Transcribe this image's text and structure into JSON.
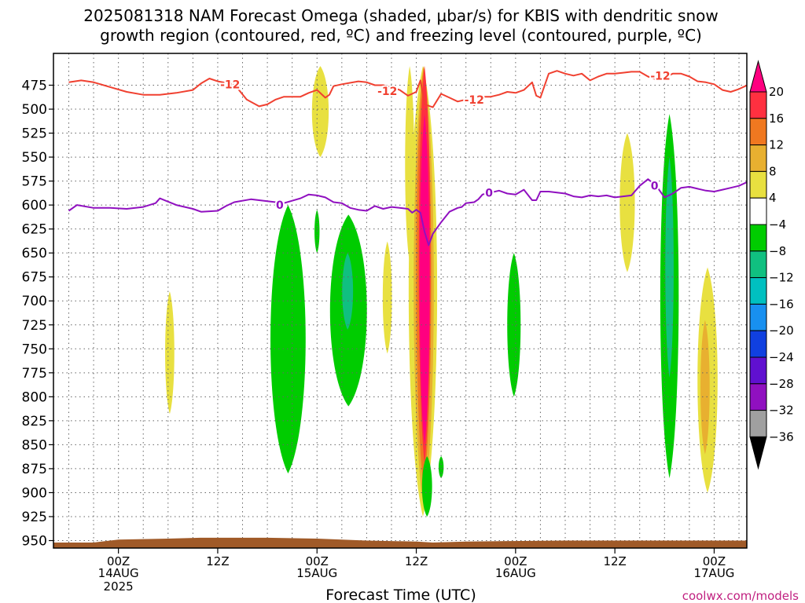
{
  "chart_data": {
    "type": "heatmap",
    "title_line1": "2025081318 NAM Forecast Omega (shaded, μbar/s) for KBIS with dendritic snow",
    "title_line2": "growth region (contoured, red, ºC) and freezing level (contoured, purple, ºC)",
    "xlabel": "Forecast Time (UTC)",
    "ylabel": "",
    "credit": "coolwx.com/models",
    "x_ticks": [
      {
        "hour": 6,
        "label": "00Z",
        "sub": "14AUG",
        "sub2": "2025"
      },
      {
        "hour": 18,
        "label": "12Z",
        "sub": "",
        "sub2": ""
      },
      {
        "hour": 30,
        "label": "00Z",
        "sub": "15AUG",
        "sub2": ""
      },
      {
        "hour": 42,
        "label": "12Z",
        "sub": "",
        "sub2": ""
      },
      {
        "hour": 54,
        "label": "00Z",
        "sub": "16AUG",
        "sub2": ""
      },
      {
        "hour": 66,
        "label": "12Z",
        "sub": "",
        "sub2": ""
      },
      {
        "hour": 78,
        "label": "00Z",
        "sub": "17AUG",
        "sub2": ""
      }
    ],
    "xlim": [
      0,
      84
    ],
    "y_ticks": [
      475,
      500,
      525,
      550,
      575,
      600,
      625,
      650,
      675,
      700,
      725,
      750,
      775,
      800,
      825,
      850,
      875,
      900,
      925,
      950
    ],
    "ylim_pressure_mb": [
      455,
      957
    ],
    "grid": true,
    "colorbar": {
      "labels": [
        "20",
        "16",
        "12",
        "8",
        "4",
        "−4",
        "−8",
        "−12",
        "−16",
        "−20",
        "−24",
        "−28",
        "−32",
        "−36"
      ],
      "colors": [
        "#ff0080",
        "#ff3040",
        "#f07820",
        "#e8b030",
        "#e8e040",
        "#ffffff",
        "#00cc00",
        "#10c080",
        "#00c0c0",
        "#1890f0",
        "#1040e0",
        "#6010d0",
        "#9010c0",
        "#a0a0a0"
      ]
    },
    "series": [
      {
        "name": "-12",
        "color": "#f04030",
        "x": [
          0,
          1.5,
          3,
          5,
          7,
          9,
          11,
          13,
          15,
          16,
          17,
          18,
          20,
          21.5,
          23,
          24,
          25,
          26,
          28,
          29,
          30,
          31,
          31.5,
          32,
          33,
          35,
          36,
          37,
          38,
          39,
          40,
          41,
          42,
          42.5,
          43,
          44,
          45,
          46,
          47,
          48,
          49,
          50,
          51,
          52,
          53,
          54,
          55,
          56,
          56.5,
          57,
          58,
          59,
          60,
          61,
          62,
          63,
          64,
          65,
          66,
          67,
          68,
          69,
          70,
          71,
          72,
          73,
          74,
          75,
          76,
          77,
          78,
          79,
          80,
          81,
          82,
          83,
          84
        ],
        "y": [
          472,
          470,
          472,
          477,
          482,
          485,
          485,
          483,
          480,
          473,
          468,
          471,
          474,
          490,
          497,
          495,
          490,
          487,
          487,
          483,
          480,
          488,
          485,
          476,
          474,
          471,
          472,
          475,
          475,
          477,
          480,
          486,
          482,
          470,
          495,
          498,
          484,
          488,
          492,
          490,
          496,
          487,
          487,
          485,
          482,
          483,
          480,
          472,
          486,
          488,
          463,
          460,
          463,
          465,
          463,
          470,
          466,
          463,
          463,
          462,
          461,
          461,
          466,
          469,
          467,
          463,
          463,
          466,
          471,
          472,
          474,
          480,
          482,
          479,
          475,
          472,
          474
        ]
      },
      {
        "name": "0",
        "color": "#9010c0",
        "x": [
          0,
          1,
          3,
          5,
          7,
          9,
          10.5,
          11,
          13,
          15,
          16,
          18,
          19,
          20,
          22,
          24,
          26,
          28,
          29,
          30,
          31,
          32,
          33,
          34,
          35,
          36,
          37,
          38,
          39,
          40,
          41,
          41.5,
          42,
          42.5,
          43,
          43.5,
          44,
          45,
          46,
          47,
          47.5,
          48,
          49,
          49.5,
          50,
          52,
          53,
          54,
          55,
          56,
          56.5,
          57,
          58,
          59,
          60,
          61,
          62,
          63,
          64,
          65,
          66,
          67,
          68,
          69,
          70,
          71,
          72,
          73,
          74,
          75,
          76,
          77,
          78,
          79,
          80,
          81,
          82,
          83,
          84
        ],
        "y": [
          606,
          600,
          603,
          603,
          604,
          602,
          598,
          593,
          600,
          604,
          607,
          606,
          601,
          597,
          594,
          596,
          598,
          593,
          589,
          590,
          592,
          597,
          598,
          603,
          605,
          606,
          601,
          604,
          602,
          603,
          604,
          608,
          605,
          608,
          628,
          642,
          630,
          618,
          607,
          603,
          602,
          598,
          597,
          594,
          589,
          585,
          588,
          589,
          584,
          595,
          595,
          586,
          586,
          587,
          588,
          591,
          592,
          590,
          591,
          590,
          592,
          591,
          590,
          580,
          573,
          580,
          592,
          588,
          582,
          581,
          583,
          585,
          586,
          584,
          582,
          580,
          576,
          575,
          577
        ]
      }
    ],
    "contour_labels": [
      {
        "text": "-12",
        "hour": 19.5,
        "p": 474,
        "color": "#f04030"
      },
      {
        "text": "-12",
        "hour": 38.5,
        "p": 481,
        "color": "#f04030"
      },
      {
        "text": "-12",
        "hour": 49.0,
        "p": 490,
        "color": "#f04030"
      },
      {
        "text": "-12",
        "hour": 71.5,
        "p": 465,
        "color": "#f04030"
      },
      {
        "text": "0",
        "hour": 25.5,
        "p": 600,
        "color": "#9010c0"
      },
      {
        "text": "0",
        "hour": 50.8,
        "p": 587,
        "color": "#9010c0"
      },
      {
        "text": "0",
        "hour": 70.8,
        "p": 580,
        "color": "#9010c0"
      }
    ],
    "shaded_regions": [
      {
        "fill": "#e8e040",
        "hour": 12.2,
        "p_top": 690,
        "p_bot": 818,
        "halfwidth_h": 0.55,
        "shape": "lens"
      },
      {
        "fill": "#e8e040",
        "hour": 30.4,
        "p_top": 455,
        "p_bot": 550,
        "halfwidth_h": 1.0,
        "shape": "lens"
      },
      {
        "fill": "#e8e040",
        "hour": 38.5,
        "p_top": 638,
        "p_bot": 755,
        "halfwidth_h": 0.55,
        "shape": "lens"
      },
      {
        "fill": "#e8e040",
        "hour": 41.2,
        "p_top": 455,
        "p_bot": 660,
        "halfwidth_h": 0.55,
        "shape": "lens"
      },
      {
        "fill": "#e8e040",
        "hour": 42.8,
        "p_top": 455,
        "p_bot": 925,
        "halfwidth_h": 1.7,
        "shape": "lens"
      },
      {
        "fill": "#e8e040",
        "hour": 67.5,
        "p_top": 525,
        "p_bot": 670,
        "halfwidth_h": 0.9,
        "shape": "lens"
      },
      {
        "fill": "#e8e040",
        "hour": 77.2,
        "p_top": 665,
        "p_bot": 900,
        "halfwidth_h": 1.2,
        "shape": "lens"
      },
      {
        "fill": "#e8b030",
        "hour": 42.9,
        "p_top": 455,
        "p_bot": 915,
        "halfwidth_h": 1.2,
        "shape": "lens"
      },
      {
        "fill": "#e8b030",
        "hour": 76.9,
        "p_top": 720,
        "p_bot": 860,
        "halfwidth_h": 0.55,
        "shape": "lens"
      },
      {
        "fill": "#f07820",
        "hour": 42.9,
        "p_top": 455,
        "p_bot": 895,
        "halfwidth_h": 0.9,
        "shape": "lens"
      },
      {
        "fill": "#ff3040",
        "hour": 43.0,
        "p_top": 455,
        "p_bot": 870,
        "halfwidth_h": 0.7,
        "shape": "lens"
      },
      {
        "fill": "#ff0080",
        "hour": 43.0,
        "p_top": 505,
        "p_bot": 850,
        "halfwidth_h": 0.6,
        "shape": "lens"
      },
      {
        "fill": "#00cc00",
        "hour": 26.5,
        "p_top": 600,
        "p_bot": 880,
        "halfwidth_h": 2.1,
        "shape": "lens"
      },
      {
        "fill": "#00cc00",
        "hour": 30.0,
        "p_top": 605,
        "p_bot": 650,
        "halfwidth_h": 0.3,
        "shape": "lens"
      },
      {
        "fill": "#00cc00",
        "hour": 33.8,
        "p_top": 610,
        "p_bot": 810,
        "halfwidth_h": 2.2,
        "shape": "lens"
      },
      {
        "fill": "#10c080",
        "hour": 33.7,
        "p_top": 650,
        "p_bot": 730,
        "halfwidth_h": 0.65,
        "shape": "lens"
      },
      {
        "fill": "#00cc00",
        "hour": 43.3,
        "p_top": 862,
        "p_bot": 925,
        "halfwidth_h": 0.6,
        "shape": "lens"
      },
      {
        "fill": "#00cc00",
        "hour": 45.0,
        "p_top": 862,
        "p_bot": 885,
        "halfwidth_h": 0.3,
        "shape": "lens"
      },
      {
        "fill": "#00cc00",
        "hour": 53.8,
        "p_top": 650,
        "p_bot": 800,
        "halfwidth_h": 0.8,
        "shape": "lens"
      },
      {
        "fill": "#00cc00",
        "hour": 72.6,
        "p_top": 505,
        "p_bot": 885,
        "halfwidth_h": 1.1,
        "shape": "lens"
      },
      {
        "fill": "#10c080",
        "hour": 72.6,
        "p_top": 550,
        "p_bot": 780,
        "halfwidth_h": 0.5,
        "shape": "lens"
      }
    ],
    "ground": {
      "fill": "#a05a28"
    }
  }
}
